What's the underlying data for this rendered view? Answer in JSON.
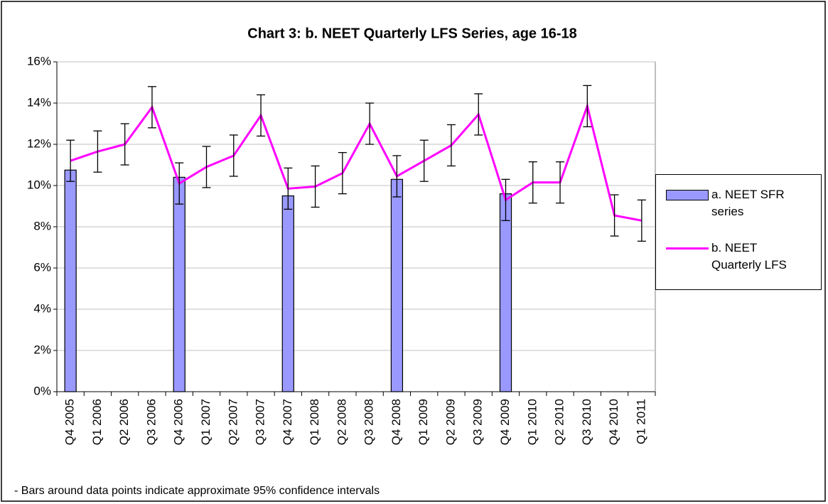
{
  "chart_data": {
    "type": "bar-line",
    "title": "Chart 3: b. NEET Quarterly LFS Series, age 16-18",
    "note": "- Bars around data points indicate approximate 95% confidence intervals",
    "categories": [
      "Q4 2005",
      "Q1 2006",
      "Q2 2006",
      "Q3 2006",
      "Q4 2006",
      "Q1 2007",
      "Q2 2007",
      "Q3 2007",
      "Q4 2007",
      "Q1 2008",
      "Q2 2008",
      "Q3 2008",
      "Q4 2008",
      "Q1 2009",
      "Q2 2009",
      "Q3 2009",
      "Q4 2009",
      "Q1 2010",
      "Q2 2010",
      "Q3 2010",
      "Q4 2010",
      "Q1 2011"
    ],
    "series": [
      {
        "name": "a. NEET SFR series",
        "type": "bar",
        "color": "#9999ff",
        "values": [
          10.75,
          null,
          null,
          null,
          10.4,
          null,
          null,
          null,
          9.5,
          null,
          null,
          null,
          10.3,
          null,
          null,
          null,
          9.6,
          null,
          null,
          null,
          null,
          null
        ]
      },
      {
        "name": "b. NEET Quarterly LFS",
        "type": "line",
        "color": "#ff00ff",
        "values": [
          11.2,
          11.65,
          12.0,
          13.8,
          10.1,
          10.9,
          11.45,
          13.4,
          9.85,
          9.95,
          10.6,
          13.0,
          10.45,
          11.2,
          11.95,
          13.45,
          9.3,
          10.15,
          10.15,
          13.85,
          8.55,
          8.3
        ],
        "errors": [
          1.0,
          1.0,
          1.0,
          1.0,
          1.0,
          1.0,
          1.0,
          1.0,
          1.0,
          1.0,
          1.0,
          1.0,
          1.0,
          1.0,
          1.0,
          1.0,
          1.0,
          1.0,
          1.0,
          1.0,
          1.0,
          1.0
        ]
      }
    ],
    "ylim": [
      0,
      16
    ],
    "yticks": [
      {
        "value": 0,
        "label": "0%"
      },
      {
        "value": 2,
        "label": "2%"
      },
      {
        "value": 4,
        "label": "4%"
      },
      {
        "value": 6,
        "label": "6%"
      },
      {
        "value": 8,
        "label": "8%"
      },
      {
        "value": 10,
        "label": "10%"
      },
      {
        "value": 12,
        "label": "12%"
      },
      {
        "value": 14,
        "label": "14%"
      },
      {
        "value": 16,
        "label": "16%"
      }
    ],
    "grid": true
  }
}
